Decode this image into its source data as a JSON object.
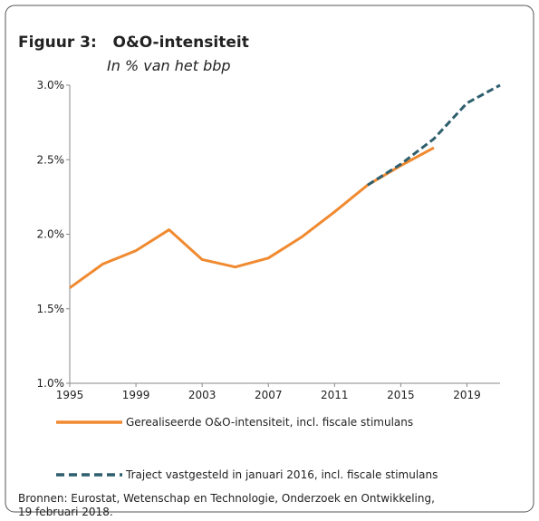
{
  "chart_data": {
    "type": "line",
    "title": "Figuur 3:   O&O-intensiteit",
    "subtitle": "In % van het bbp",
    "source": "Bronnen: Eurostat, Wetenschap en Technologie, Onderzoek en Ontwikkeling,",
    "source_line2": "19 februari 2018.",
    "xlim": [
      1995,
      2021
    ],
    "xticks": [
      1995,
      1999,
      2003,
      2007,
      2011,
      2015,
      2019
    ],
    "ylim": [
      1.0,
      3.0
    ],
    "yticks": [
      {
        "value": 1.0,
        "label": "1.0%"
      },
      {
        "value": 1.5,
        "label": "1.5%"
      },
      {
        "value": 2.0,
        "label": "2.0%"
      },
      {
        "value": 2.5,
        "label": "2.5%"
      },
      {
        "value": 3.0,
        "label": "3.0%"
      }
    ],
    "grid": false,
    "series": [
      {
        "name": "Gerealiseerde O&O-intensiteit, incl. fiscale stimulans",
        "color": "#f08a30",
        "dashed": false,
        "x": [
          1995,
          1997,
          1999,
          2001,
          2003,
          2005,
          2007,
          2009,
          2011,
          2013,
          2015,
          2017
        ],
        "values": [
          1.64,
          1.8,
          1.89,
          2.03,
          1.83,
          1.78,
          1.84,
          1.98,
          2.15,
          2.33,
          2.46,
          2.58
        ]
      },
      {
        "name": "Traject vastgesteld in januari 2016, incl. fiscale stimulans",
        "color": "#2f5f6e",
        "dashed": true,
        "x": [
          2013,
          2015,
          2017,
          2019,
          2021
        ],
        "values": [
          2.33,
          2.47,
          2.64,
          2.88,
          3.0
        ]
      }
    ]
  }
}
